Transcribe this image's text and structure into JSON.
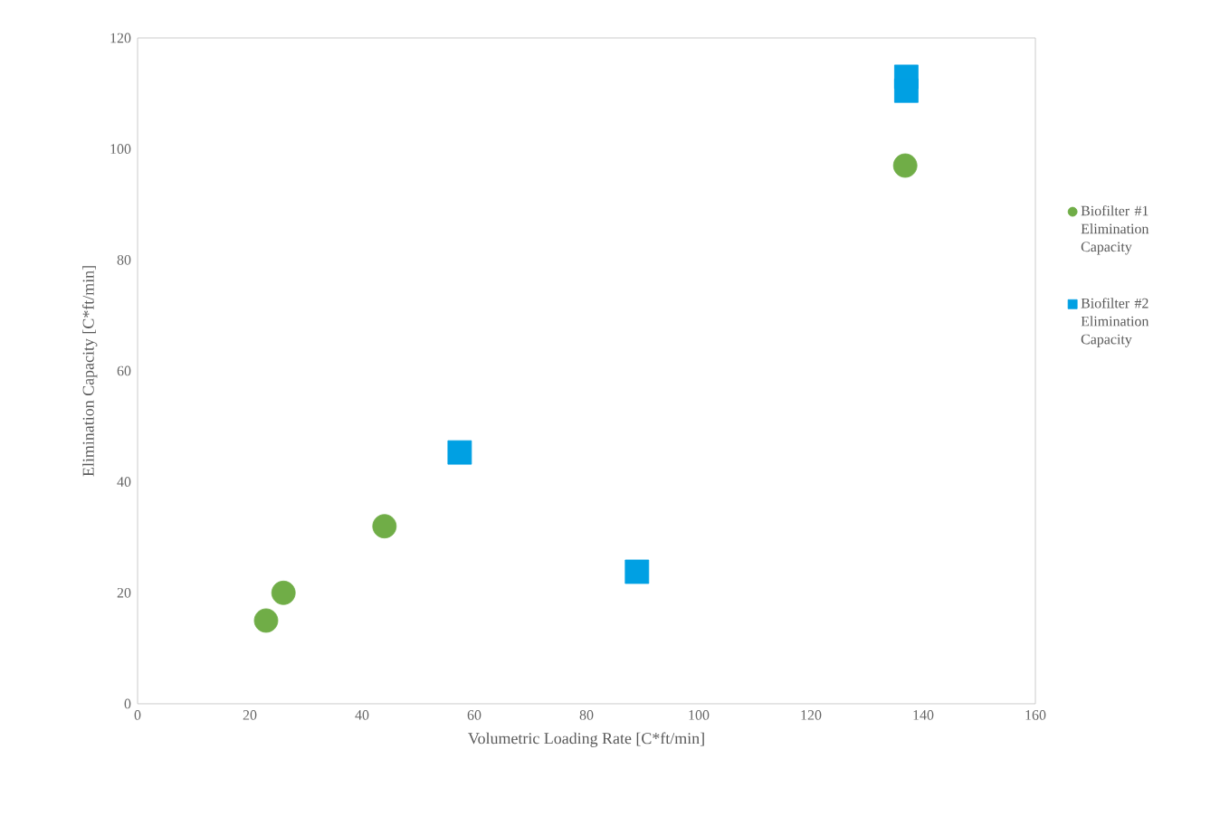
{
  "chart_data": {
    "type": "scatter",
    "xlabel": "Volumetric Loading Rate [C*ft/min]",
    "ylabel": "Elimination Capacity [C*ft/min]",
    "xlim": [
      0,
      160
    ],
    "xticks": [
      0,
      20,
      40,
      60,
      80,
      100,
      120,
      140,
      160
    ],
    "ylim": [
      0,
      120
    ],
    "yticks": [
      0,
      20,
      40,
      60,
      80,
      100,
      120
    ],
    "legend": "right",
    "grid": false,
    "series": [
      {
        "name": "Biofilter #1 Elimination Capacity",
        "color": "#70ad47",
        "marker": "circle",
        "x": [
          22.9,
          26,
          44,
          136.8
        ],
        "values": [
          15,
          20,
          32,
          97
        ]
      },
      {
        "name": "Biofilter #2 Elimination Capacity",
        "color": "#00a0e3",
        "marker": "square",
        "x": [
          57.4,
          89,
          137,
          137
        ],
        "values": [
          45.3,
          23.8,
          113,
          110.5
        ]
      }
    ]
  }
}
